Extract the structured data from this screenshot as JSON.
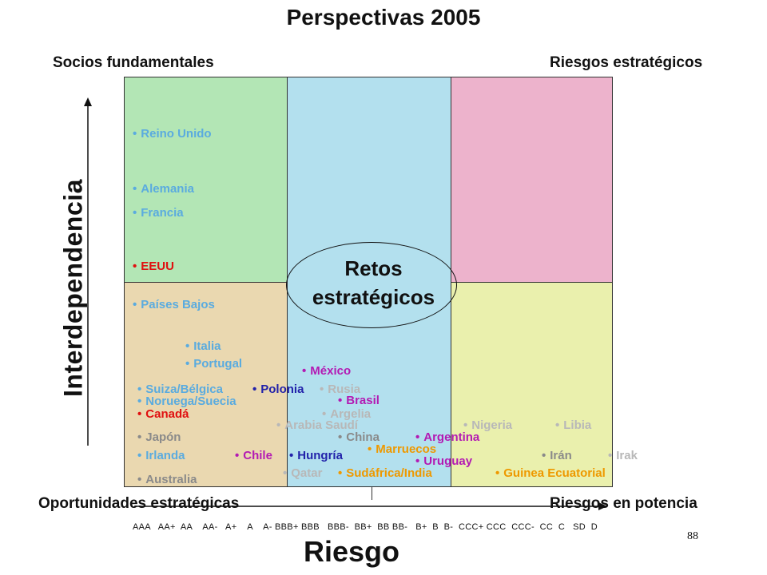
{
  "title": "Perspectivas 2005",
  "corners": {
    "top_left": "Socios fundamentales",
    "top_right": "Riesgos estratégicos",
    "bottom_left": "Oportunidades estratégicas",
    "bottom_right": "Riesgos en potencia"
  },
  "center_label": {
    "line1": "Retos",
    "line2": "estratégicos"
  },
  "axes": {
    "y_label": "Interdependencia",
    "x_label": "Riesgo",
    "x_scale": "AAA   AA+  AA    AA-   A+    A    A- BBB+ BBB   BBB-  BB+  BB BB-   B+  B  B-  CCC+ CCC  CCC-  CC  C   SD  D"
  },
  "page_number": "88",
  "colors": {
    "green": "#b3e6b5",
    "blue": "#b3e0ee",
    "pink": "#edb3cc",
    "tan": "#ead8b0",
    "yellow": "#eaf0ad",
    "light_blue_text": "#5aabdf",
    "red_text": "#e01010",
    "gray_text": "#8a8a8a",
    "light_gray_text": "#b8b8b8",
    "magenta_text": "#b31ab3",
    "dark_blue_text": "#2222aa",
    "orange_text": "#ee9900"
  },
  "countries": [
    {
      "label": "Reino Unido",
      "color": "#5aabdf"
    },
    {
      "label": "Alemania",
      "color": "#5aabdf"
    },
    {
      "label": "Francia",
      "color": "#5aabdf"
    },
    {
      "label": "EEUU",
      "color": "#e01010"
    },
    {
      "label": "Países Bajos",
      "color": "#5aabdf"
    },
    {
      "label": "Italia",
      "color": "#5aabdf"
    },
    {
      "label": "Portugal",
      "color": "#5aabdf"
    },
    {
      "label": "México",
      "color": "#b31ab3"
    },
    {
      "label": "Suiza/Bélgica",
      "color": "#5aabdf"
    },
    {
      "label": "Polonia",
      "color": "#2222aa"
    },
    {
      "label": "Rusia",
      "color": "#b8b8b8"
    },
    {
      "label": "Noruega/Suecia",
      "color": "#5aabdf"
    },
    {
      "label": "Brasil",
      "color": "#b31ab3"
    },
    {
      "label": "Canadá",
      "color": "#e01010"
    },
    {
      "label": "Argelia",
      "color": "#b8b8b8"
    },
    {
      "label": "Arabia Saudí",
      "color": "#b8b8b8"
    },
    {
      "label": "Nigeria",
      "color": "#b8b8b8"
    },
    {
      "label": "Libia",
      "color": "#b8b8b8"
    },
    {
      "label": "Japón",
      "color": "#8a8a8a"
    },
    {
      "label": "China",
      "color": "#8a8a8a"
    },
    {
      "label": "Argentina",
      "color": "#b31ab3"
    },
    {
      "label": "Irlanda",
      "color": "#5aabdf"
    },
    {
      "label": "Chile",
      "color": "#b31ab3"
    },
    {
      "label": "Hungría",
      "color": "#2222aa"
    },
    {
      "label": "Marruecos",
      "color": "#ee9900"
    },
    {
      "label": "Uruguay",
      "color": "#b31ab3"
    },
    {
      "label": "Irán",
      "color": "#8a8a8a"
    },
    {
      "label": "Irak",
      "color": "#b8b8b8"
    },
    {
      "label": "Qatar",
      "color": "#b8b8b8"
    },
    {
      "label": "Sudáfrica/India",
      "color": "#ee9900"
    },
    {
      "label": "Guinea Ecuatorial",
      "color": "#ee9900"
    },
    {
      "label": "Australia",
      "color": "#8a8a8a"
    }
  ]
}
